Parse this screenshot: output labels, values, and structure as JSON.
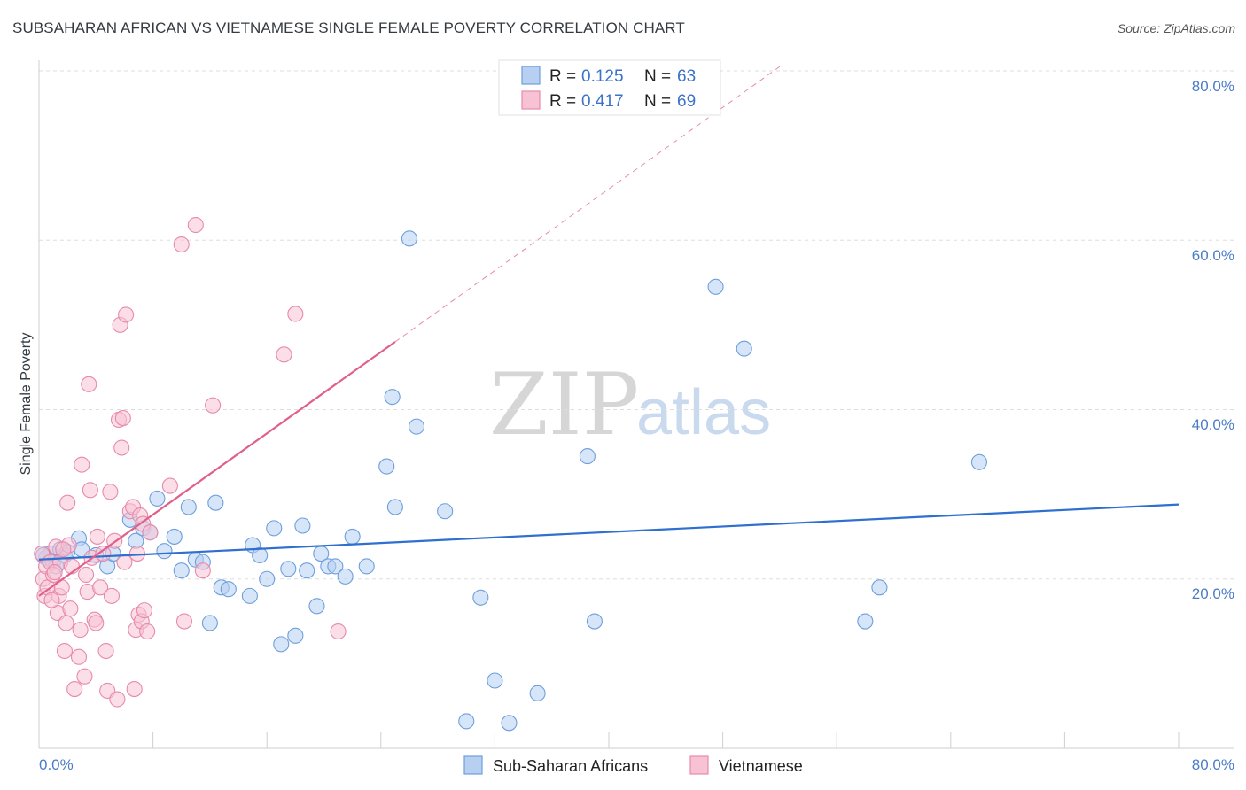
{
  "header": {
    "title": "SUBSAHARAN AFRICAN VS VIETNAMESE SINGLE FEMALE POVERTY CORRELATION CHART",
    "source": "Source: ZipAtlas.com"
  },
  "watermark": {
    "zip": "ZIP",
    "atlas": "atlas"
  },
  "legend": {
    "r_label": "R =",
    "n_label": "N =",
    "rows": [
      {
        "r": "0.125",
        "n": "63"
      },
      {
        "r": "0.417",
        "n": "69"
      }
    ]
  },
  "colors": {
    "blue_fill": "#b7d0f2",
    "blue_stroke": "#6d9fdc",
    "blue_line": "#2e6fcf",
    "pink_fill": "#f7c3d4",
    "pink_stroke": "#e88aaa",
    "pink_line": "#e0608a",
    "tick_text": "#4a7cc7"
  },
  "chart_data": {
    "type": "scatter",
    "title": "SUBSAHARAN AFRICAN VS VIETNAMESE SINGLE FEMALE POVERTY CORRELATION CHART",
    "xlabel": "",
    "ylabel": "Single Female Poverty",
    "xlim": [
      0,
      80
    ],
    "ylim": [
      0,
      80
    ],
    "x_tick_labels": [
      "0.0%",
      "80.0%"
    ],
    "y_tick_labels": [
      "20.0%",
      "40.0%",
      "60.0%",
      "80.0%"
    ],
    "y_ticks": [
      20,
      40,
      60,
      80
    ],
    "grid": true,
    "legend_position": "top-center",
    "series": [
      {
        "name": "Sub-Saharan Africans",
        "color": "#6d9fdc",
        "trend": {
          "x": [
            0,
            80
          ],
          "y": [
            22.3,
            28.8
          ]
        },
        "points": [
          [
            0.5,
            22.5
          ],
          [
            0.8,
            23.0
          ],
          [
            1.0,
            22.0
          ],
          [
            1.2,
            21.5
          ],
          [
            1.5,
            23.5
          ],
          [
            1.8,
            22.8
          ],
          [
            2.0,
            23.2
          ],
          [
            2.8,
            24.8
          ],
          [
            3.0,
            23.5
          ],
          [
            4.0,
            22.8
          ],
          [
            4.8,
            21.5
          ],
          [
            5.2,
            23.0
          ],
          [
            6.4,
            27.0
          ],
          [
            6.8,
            24.5
          ],
          [
            7.3,
            26.0
          ],
          [
            7.8,
            25.5
          ],
          [
            8.3,
            29.5
          ],
          [
            8.8,
            23.3
          ],
          [
            9.5,
            25.0
          ],
          [
            10.0,
            21.0
          ],
          [
            10.5,
            28.5
          ],
          [
            11.0,
            22.3
          ],
          [
            11.5,
            22.0
          ],
          [
            12.0,
            14.8
          ],
          [
            12.4,
            29.0
          ],
          [
            12.8,
            19.0
          ],
          [
            13.3,
            18.8
          ],
          [
            14.8,
            18.0
          ],
          [
            15.0,
            24.0
          ],
          [
            15.5,
            22.8
          ],
          [
            16.0,
            20.0
          ],
          [
            16.5,
            26.0
          ],
          [
            17.0,
            12.3
          ],
          [
            17.5,
            21.2
          ],
          [
            18.0,
            13.3
          ],
          [
            18.5,
            26.3
          ],
          [
            18.8,
            21.0
          ],
          [
            19.5,
            16.8
          ],
          [
            19.8,
            23.0
          ],
          [
            20.3,
            21.5
          ],
          [
            20.8,
            21.5
          ],
          [
            21.5,
            20.3
          ],
          [
            22.0,
            25.0
          ],
          [
            23.0,
            21.5
          ],
          [
            24.4,
            33.3
          ],
          [
            24.8,
            41.5
          ],
          [
            25.0,
            28.5
          ],
          [
            26.0,
            60.2
          ],
          [
            26.5,
            38.0
          ],
          [
            28.5,
            28.0
          ],
          [
            30.0,
            3.2
          ],
          [
            31.0,
            17.8
          ],
          [
            32.0,
            8.0
          ],
          [
            33.0,
            3.0
          ],
          [
            35.0,
            6.5
          ],
          [
            38.5,
            34.5
          ],
          [
            39.0,
            15.0
          ],
          [
            47.5,
            54.5
          ],
          [
            49.5,
            47.2
          ],
          [
            58.0,
            15.0
          ],
          [
            59.0,
            19.0
          ],
          [
            66.0,
            33.8
          ],
          [
            0.3,
            22.8
          ]
        ]
      },
      {
        "name": "Vietnamese",
        "color": "#e88aaa",
        "trend": {
          "x": [
            0,
            25
          ],
          "y": [
            18.0,
            48.0
          ],
          "dashed_to": {
            "x": [
              25,
              52
            ],
            "y": [
              48.0,
              80.5
            ]
          }
        },
        "points": [
          [
            0.2,
            23.0
          ],
          [
            0.3,
            20.0
          ],
          [
            0.4,
            18.0
          ],
          [
            0.5,
            21.5
          ],
          [
            0.6,
            19.0
          ],
          [
            0.8,
            22.0
          ],
          [
            1.0,
            20.5
          ],
          [
            1.2,
            23.8
          ],
          [
            1.3,
            16.0
          ],
          [
            1.4,
            18.0
          ],
          [
            1.5,
            22.0
          ],
          [
            1.6,
            19.0
          ],
          [
            1.8,
            11.5
          ],
          [
            1.9,
            14.8
          ],
          [
            2.0,
            29.0
          ],
          [
            2.1,
            24.0
          ],
          [
            2.3,
            21.5
          ],
          [
            2.5,
            7.0
          ],
          [
            2.8,
            10.8
          ],
          [
            2.9,
            14.0
          ],
          [
            3.0,
            33.5
          ],
          [
            3.2,
            8.5
          ],
          [
            3.4,
            18.5
          ],
          [
            3.5,
            43.0
          ],
          [
            3.6,
            30.5
          ],
          [
            3.7,
            22.5
          ],
          [
            3.9,
            15.2
          ],
          [
            4.0,
            14.8
          ],
          [
            4.1,
            25.0
          ],
          [
            4.3,
            19.0
          ],
          [
            4.5,
            23.0
          ],
          [
            4.7,
            11.5
          ],
          [
            4.8,
            6.8
          ],
          [
            5.0,
            30.3
          ],
          [
            5.1,
            18.0
          ],
          [
            5.3,
            24.5
          ],
          [
            5.5,
            5.8
          ],
          [
            5.6,
            38.8
          ],
          [
            5.7,
            50.0
          ],
          [
            5.8,
            35.5
          ],
          [
            5.9,
            39.0
          ],
          [
            6.0,
            22.0
          ],
          [
            6.1,
            51.2
          ],
          [
            6.4,
            28.0
          ],
          [
            6.6,
            28.5
          ],
          [
            6.7,
            7.0
          ],
          [
            6.8,
            14.0
          ],
          [
            6.9,
            23.0
          ],
          [
            7.0,
            15.8
          ],
          [
            7.1,
            27.5
          ],
          [
            7.2,
            15.0
          ],
          [
            7.3,
            26.5
          ],
          [
            7.4,
            16.3
          ],
          [
            7.6,
            13.8
          ],
          [
            7.8,
            25.5
          ],
          [
            9.2,
            31.0
          ],
          [
            10.0,
            59.5
          ],
          [
            10.2,
            15.0
          ],
          [
            11.0,
            61.8
          ],
          [
            11.5,
            21.0
          ],
          [
            12.2,
            40.5
          ],
          [
            17.2,
            46.5
          ],
          [
            18.0,
            51.3
          ],
          [
            21.0,
            13.8
          ],
          [
            1.1,
            20.8
          ],
          [
            0.9,
            17.5
          ],
          [
            2.2,
            16.5
          ],
          [
            1.7,
            23.5
          ],
          [
            3.3,
            20.5
          ]
        ]
      }
    ]
  }
}
